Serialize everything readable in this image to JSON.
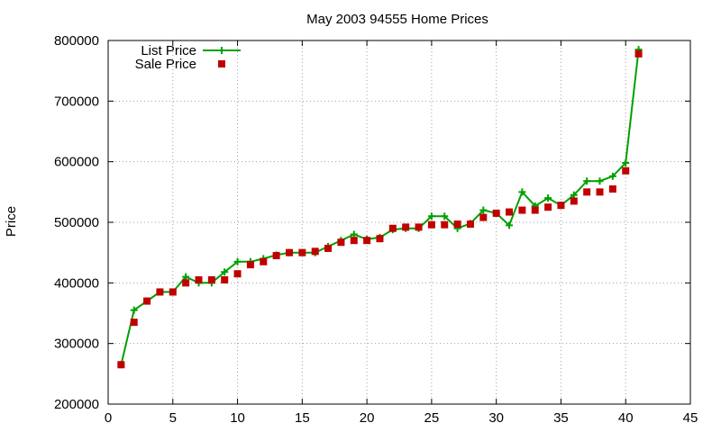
{
  "chart_data": {
    "type": "line",
    "title": "May 2003 94555 Home Prices",
    "xlabel": "",
    "ylabel": "Price",
    "xlim": [
      0,
      45
    ],
    "ylim": [
      200000,
      800000
    ],
    "xticks": [
      0,
      5,
      10,
      15,
      20,
      25,
      30,
      35,
      40,
      45
    ],
    "yticks": [
      200000,
      300000,
      400000,
      500000,
      600000,
      700000,
      800000
    ],
    "grid": true,
    "legend_position": "top-left",
    "series": [
      {
        "name": "List Price",
        "style": "line-with-plus-markers",
        "color": "#00a000",
        "points": [
          [
            1,
            265000
          ],
          [
            2,
            355000
          ],
          [
            3,
            370000
          ],
          [
            4,
            385000
          ],
          [
            5,
            385000
          ],
          [
            6,
            410000
          ],
          [
            7,
            400000
          ],
          [
            8,
            400000
          ],
          [
            9,
            418000
          ],
          [
            10,
            435000
          ],
          [
            11,
            435000
          ],
          [
            12,
            440000
          ],
          [
            13,
            446000
          ],
          [
            14,
            450000
          ],
          [
            15,
            450000
          ],
          [
            16,
            450000
          ],
          [
            17,
            460000
          ],
          [
            18,
            470000
          ],
          [
            19,
            480000
          ],
          [
            20,
            472000
          ],
          [
            21,
            475000
          ],
          [
            22,
            488000
          ],
          [
            23,
            490000
          ],
          [
            24,
            490000
          ],
          [
            25,
            510000
          ],
          [
            26,
            510000
          ],
          [
            27,
            490000
          ],
          [
            28,
            498000
          ],
          [
            29,
            520000
          ],
          [
            30,
            515000
          ],
          [
            31,
            495000
          ],
          [
            32,
            550000
          ],
          [
            33,
            527000
          ],
          [
            34,
            540000
          ],
          [
            35,
            528000
          ],
          [
            36,
            545000
          ],
          [
            37,
            568000
          ],
          [
            38,
            568000
          ],
          [
            39,
            576000
          ],
          [
            40,
            598000
          ],
          [
            41,
            785000
          ]
        ]
      },
      {
        "name": "Sale Price",
        "style": "square-markers",
        "color": "#c00000",
        "points": [
          [
            1,
            265000
          ],
          [
            2,
            335000
          ],
          [
            3,
            370000
          ],
          [
            4,
            385000
          ],
          [
            5,
            385000
          ],
          [
            6,
            400000
          ],
          [
            7,
            405000
          ],
          [
            8,
            405000
          ],
          [
            9,
            405000
          ],
          [
            10,
            415000
          ],
          [
            11,
            430000
          ],
          [
            12,
            435000
          ],
          [
            13,
            445000
          ],
          [
            14,
            450000
          ],
          [
            15,
            450000
          ],
          [
            16,
            452000
          ],
          [
            17,
            457000
          ],
          [
            18,
            467000
          ],
          [
            19,
            470000
          ],
          [
            20,
            470000
          ],
          [
            21,
            473000
          ],
          [
            22,
            490000
          ],
          [
            23,
            492000
          ],
          [
            24,
            492000
          ],
          [
            25,
            496000
          ],
          [
            26,
            496000
          ],
          [
            27,
            497000
          ],
          [
            28,
            497000
          ],
          [
            29,
            508000
          ],
          [
            30,
            515000
          ],
          [
            31,
            517000
          ],
          [
            32,
            520000
          ],
          [
            33,
            520000
          ],
          [
            34,
            525000
          ],
          [
            35,
            528000
          ],
          [
            36,
            535000
          ],
          [
            37,
            550000
          ],
          [
            38,
            550000
          ],
          [
            39,
            555000
          ],
          [
            40,
            585000
          ],
          [
            41,
            778000
          ]
        ]
      }
    ]
  }
}
